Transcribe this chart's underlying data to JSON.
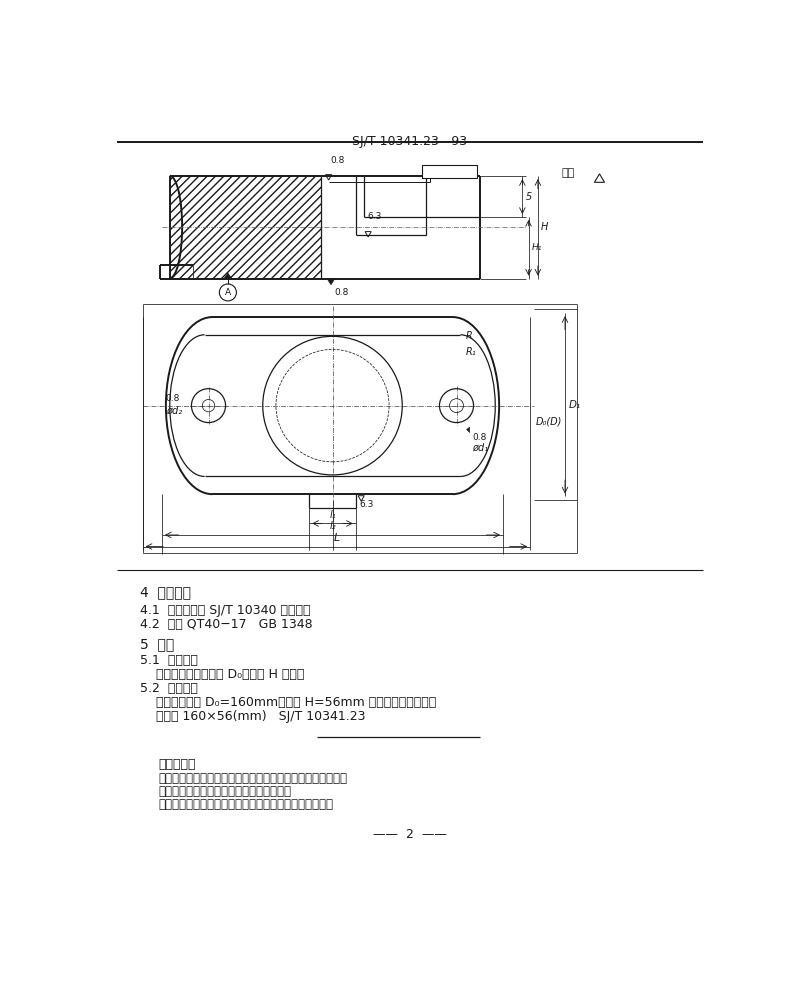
{
  "title": "SJ/T 10341.23—93",
  "bg_color": "#ffffff",
  "line_color": "#1a1a1a",
  "section4_title": "4  技术要求",
  "section41": "4.1  技术条件按 SJ/T 10340 的规定。",
  "section42": "4.2  材料 QT40−17   GB 1348",
  "section5_title": "5  标记",
  "section51_title": "5.1  标记方法",
  "section51_body": "    标记由模架工作范围 D₀、厅度 H 表示。",
  "section52_title": "5.2  标记示例",
  "section52_body1": "    模架工作范围 D₀=160mm、厅度 H=56mm 的中间导柱下模座；",
  "section52_body2": "    下模座 160×56(mm)   SJ/T 10341.23",
  "appendix_title": "附加说明：",
  "appendix_line1": "本标准由中华人民共和国电子工业部科技与质量监督司提出。",
  "appendix_line2": "本标准由全国模具标准化技术委员会归口。",
  "appendix_line3": "本标准由国营七三三厂、电子部标准化研究所负责起草。",
  "page_num": "——  2  ——"
}
